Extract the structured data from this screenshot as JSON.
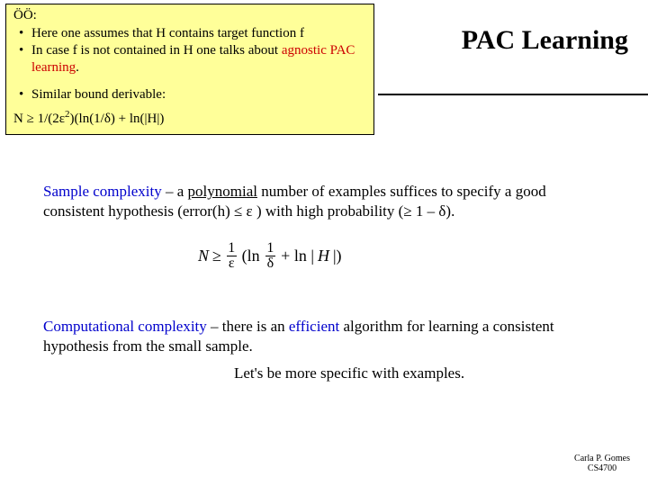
{
  "noteBox": {
    "label": "ÖÖ:",
    "item1_a": "Here one assumes that H contains target function f",
    "item2_a": "In case f is not contained in H one talks about ",
    "item2_agnostic": "agnostic PAC learning",
    "item2_b": ".",
    "item3": "Similar bound derivable:",
    "formula": "N ≥ 1/(2ε",
    "formula_sup": "2",
    "formula_tail": ")(ln(1/δ) + ln(|H|)"
  },
  "title": "PAC Learning",
  "para1": {
    "a": "Sample complexity",
    "b": " – a ",
    "c": "polynomial",
    "d": " number of examples suffices to specify a good consistent hypothesis (error(h) ≤ ε ) with high probability (≥ 1 – δ)."
  },
  "formula": {
    "N": "N",
    "ge": "≥",
    "one1": "1",
    "eps": "ε",
    "lp": "(ln",
    "one2": "1",
    "delta": "δ",
    "plus": "+ ln |",
    "H": " H",
    "bar": " |)"
  },
  "para2": {
    "a": "Computational complexity",
    "b": " – there is an ",
    "c": "efficient",
    "d": " algorithm for learning a consistent hypothesis from the small sample."
  },
  "para3": "Let's be more specific with  examples.",
  "footer": {
    "name": "Carla P. Gomes",
    "course": "CS4700"
  },
  "colors": {
    "noteBg": "#ffff99",
    "term": "#0000cc",
    "agnostic": "#cc0000"
  }
}
